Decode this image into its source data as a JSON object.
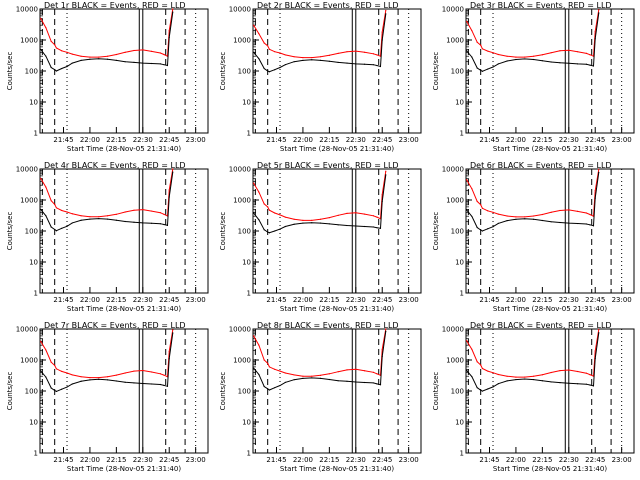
{
  "chart_data": [
    {
      "type": "line",
      "title": "Det 1r BLACK = Events, RED = LLD",
      "xlabel": "Start Time (28-Nov-05 21:31:40)",
      "ylabel": "Counts/sec",
      "yscale": "log",
      "ylim": [
        1,
        10000
      ],
      "x_ticks": [
        "21:45",
        "22:00",
        "22:15",
        "22:30",
        "22:45",
        "23:00"
      ],
      "y_ticks": [
        "1",
        "10",
        "100",
        "1000",
        "10000"
      ],
      "x": [
        "21:32",
        "21:35",
        "21:38",
        "21:40",
        "21:41",
        "21:44",
        "21:47",
        "21:50",
        "21:55",
        "22:00",
        "22:05",
        "22:10",
        "22:15",
        "22:20",
        "22:25",
        "22:30",
        "22:35",
        "22:40",
        "22:42",
        "22:44",
        "22:45",
        "22:47"
      ],
      "series": [
        {
          "name": "RED",
          "color": "#ff0000",
          "values": [
            5000,
            2500,
            900,
            700,
            550,
            450,
            400,
            350,
            300,
            280,
            280,
            300,
            340,
            400,
            460,
            480,
            430,
            380,
            340,
            300,
            2000,
            10000
          ]
        },
        {
          "name": "BLACK",
          "color": "#000000",
          "values": [
            500,
            300,
            130,
            110,
            100,
            120,
            140,
            180,
            220,
            240,
            250,
            240,
            220,
            200,
            190,
            180,
            175,
            170,
            160,
            150,
            1200,
            8000
          ]
        }
      ]
    },
    {
      "type": "line",
      "title": "Det 2r BLACK = Events, RED = LLD",
      "xlabel": "Start Time (28-Nov-05 21:31:40)",
      "ylabel": "Counts/sec",
      "yscale": "log",
      "ylim": [
        1,
        10000
      ],
      "x_ticks": [
        "21:45",
        "22:00",
        "22:15",
        "22:30",
        "22:45",
        "23:00"
      ],
      "y_ticks": [
        "1",
        "10",
        "100",
        "1000",
        "10000"
      ],
      "x": [
        "21:32",
        "21:35",
        "21:38",
        "21:40",
        "21:41",
        "21:44",
        "21:47",
        "21:50",
        "21:55",
        "22:00",
        "22:05",
        "22:10",
        "22:15",
        "22:20",
        "22:25",
        "22:30",
        "22:35",
        "22:40",
        "22:42",
        "22:44",
        "22:45",
        "22:47"
      ],
      "series": [
        {
          "name": "RED",
          "color": "#ff0000",
          "values": [
            3000,
            1600,
            800,
            650,
            500,
            420,
            380,
            330,
            290,
            270,
            270,
            290,
            320,
            370,
            420,
            440,
            400,
            360,
            330,
            300,
            1800,
            9000
          ]
        },
        {
          "name": "BLACK",
          "color": "#000000",
          "values": [
            400,
            250,
            120,
            100,
            95,
            110,
            130,
            160,
            200,
            220,
            230,
            220,
            205,
            190,
            180,
            170,
            165,
            160,
            150,
            140,
            1000,
            7000
          ]
        }
      ]
    },
    {
      "type": "line",
      "title": "Det 3r BLACK = Events, RED = LLD",
      "xlabel": "Start Time (28-Nov-05 21:31:40)",
      "ylabel": "Counts/sec",
      "yscale": "log",
      "ylim": [
        1,
        10000
      ],
      "x_ticks": [
        "21:45",
        "22:00",
        "22:15",
        "22:30",
        "22:45",
        "23:00"
      ],
      "y_ticks": [
        "1",
        "10",
        "100",
        "1000",
        "10000"
      ],
      "x": [
        "21:32",
        "21:35",
        "21:38",
        "21:40",
        "21:41",
        "21:44",
        "21:47",
        "21:50",
        "21:55",
        "22:00",
        "22:05",
        "22:10",
        "22:15",
        "22:20",
        "22:25",
        "22:30",
        "22:35",
        "22:40",
        "22:42",
        "22:44",
        "22:45",
        "22:47"
      ],
      "series": [
        {
          "name": "RED",
          "color": "#ff0000",
          "values": [
            4000,
            2000,
            850,
            680,
            520,
            440,
            390,
            340,
            300,
            280,
            280,
            300,
            335,
            390,
            450,
            470,
            420,
            370,
            335,
            300,
            1900,
            9500
          ]
        },
        {
          "name": "BLACK",
          "color": "#000000",
          "values": [
            450,
            280,
            125,
            105,
            98,
            115,
            135,
            170,
            210,
            235,
            245,
            235,
            215,
            195,
            185,
            178,
            170,
            165,
            155,
            145,
            1100,
            7500
          ]
        }
      ]
    },
    {
      "type": "line",
      "title": "Det 4r BLACK = Events, RED = LLD",
      "xlabel": "Start Time (28-Nov-05 21:31:40)",
      "ylabel": "Counts/sec",
      "yscale": "log",
      "ylim": [
        1,
        10000
      ],
      "x_ticks": [
        "21:45",
        "22:00",
        "22:15",
        "22:30",
        "22:45",
        "23:00"
      ],
      "y_ticks": [
        "1",
        "10",
        "100",
        "1000",
        "10000"
      ],
      "x": [
        "21:32",
        "21:35",
        "21:38",
        "21:40",
        "21:41",
        "21:44",
        "21:47",
        "21:50",
        "21:55",
        "22:00",
        "22:05",
        "22:10",
        "22:15",
        "22:20",
        "22:25",
        "22:30",
        "22:35",
        "22:40",
        "22:42",
        "22:44",
        "22:45",
        "22:47"
      ],
      "series": [
        {
          "name": "RED",
          "color": "#ff0000",
          "values": [
            5000,
            2600,
            950,
            720,
            560,
            460,
            410,
            360,
            310,
            290,
            290,
            310,
            345,
            410,
            470,
            490,
            440,
            390,
            345,
            305,
            2100,
            10000
          ]
        },
        {
          "name": "BLACK",
          "color": "#000000",
          "values": [
            500,
            310,
            135,
            112,
            102,
            122,
            142,
            182,
            222,
            242,
            252,
            242,
            222,
            202,
            192,
            182,
            177,
            172,
            162,
            152,
            1250,
            8000
          ]
        }
      ]
    },
    {
      "type": "line",
      "title": "Det 5r BLACK = Events, RED = LLD",
      "xlabel": "Start Time (28-Nov-05 21:31:40)",
      "ylabel": "Counts/sec",
      "yscale": "log",
      "ylim": [
        1,
        10000
      ],
      "x_ticks": [
        "21:45",
        "22:00",
        "22:15",
        "22:30",
        "22:45",
        "23:00"
      ],
      "y_ticks": [
        "1",
        "10",
        "100",
        "1000",
        "10000"
      ],
      "x": [
        "21:32",
        "21:35",
        "21:38",
        "21:40",
        "21:41",
        "21:44",
        "21:47",
        "21:50",
        "21:55",
        "22:00",
        "22:05",
        "22:10",
        "22:15",
        "22:20",
        "22:25",
        "22:30",
        "22:35",
        "22:40",
        "22:42",
        "22:44",
        "22:45",
        "22:47"
      ],
      "series": [
        {
          "name": "RED",
          "color": "#ff0000",
          "values": [
            3500,
            1800,
            750,
            600,
            470,
            380,
            330,
            280,
            240,
            220,
            220,
            240,
            270,
            320,
            370,
            390,
            350,
            310,
            280,
            250,
            1500,
            8500
          ]
        },
        {
          "name": "BLACK",
          "color": "#000000",
          "values": [
            380,
            230,
            110,
            92,
            88,
            100,
            115,
            140,
            165,
            180,
            185,
            180,
            170,
            158,
            150,
            145,
            140,
            135,
            128,
            122,
            900,
            6500
          ]
        }
      ]
    },
    {
      "type": "line",
      "title": "Det 6r BLACK = Events, RED = LLD",
      "xlabel": "Start Time (28-Nov-05 21:31:40)",
      "ylabel": "Counts/sec",
      "yscale": "log",
      "ylim": [
        1,
        10000
      ],
      "x_ticks": [
        "21:45",
        "22:00",
        "22:15",
        "22:30",
        "22:45",
        "23:00"
      ],
      "y_ticks": [
        "1",
        "10",
        "100",
        "1000",
        "10000"
      ],
      "x": [
        "21:32",
        "21:35",
        "21:38",
        "21:40",
        "21:41",
        "21:44",
        "21:47",
        "21:50",
        "21:55",
        "22:00",
        "22:05",
        "22:10",
        "22:15",
        "22:20",
        "22:25",
        "22:30",
        "22:35",
        "22:40",
        "22:42",
        "22:44",
        "22:45",
        "22:47"
      ],
      "series": [
        {
          "name": "RED",
          "color": "#ff0000",
          "values": [
            4500,
            2300,
            900,
            700,
            540,
            450,
            400,
            350,
            305,
            285,
            285,
            305,
            340,
            400,
            460,
            480,
            430,
            380,
            340,
            300,
            2000,
            9800
          ]
        },
        {
          "name": "BLACK",
          "color": "#000000",
          "values": [
            480,
            295,
            130,
            108,
            100,
            118,
            138,
            176,
            216,
            238,
            248,
            238,
            218,
            198,
            188,
            180,
            174,
            168,
            158,
            148,
            1150,
            7800
          ]
        }
      ]
    },
    {
      "type": "line",
      "title": "Det 7r BLACK = Events, RED = LLD",
      "xlabel": "Start Time (28-Nov-05 21:31:40)",
      "ylabel": "Counts/sec",
      "yscale": "log",
      "ylim": [
        1,
        10000
      ],
      "x_ticks": [
        "21:45",
        "22:00",
        "22:15",
        "22:30",
        "22:45",
        "23:00"
      ],
      "y_ticks": [
        "1",
        "10",
        "100",
        "1000",
        "10000"
      ],
      "x": [
        "21:32",
        "21:35",
        "21:38",
        "21:40",
        "21:41",
        "21:44",
        "21:47",
        "21:50",
        "21:55",
        "22:00",
        "22:05",
        "22:10",
        "22:15",
        "22:20",
        "22:25",
        "22:30",
        "22:35",
        "22:40",
        "22:42",
        "22:44",
        "22:45",
        "22:47"
      ],
      "series": [
        {
          "name": "RED",
          "color": "#ff0000",
          "values": [
            4000,
            2100,
            850,
            670,
            520,
            430,
            380,
            330,
            290,
            270,
            270,
            290,
            325,
            380,
            440,
            460,
            410,
            360,
            325,
            290,
            1900,
            9500
          ]
        },
        {
          "name": "BLACK",
          "color": "#000000",
          "values": [
            450,
            280,
            125,
            104,
            97,
            114,
            134,
            168,
            206,
            228,
            238,
            228,
            210,
            192,
            182,
            174,
            168,
            162,
            152,
            142,
            1100,
            7500
          ]
        }
      ]
    },
    {
      "type": "line",
      "title": "Det 8r BLACK = Events, RED = LLD",
      "xlabel": "Start Time (28-Nov-05 21:31:40)",
      "ylabel": "Counts/sec",
      "yscale": "log",
      "ylim": [
        1,
        10000
      ],
      "x_ticks": [
        "21:45",
        "22:00",
        "22:15",
        "22:30",
        "22:45",
        "23:00"
      ],
      "y_ticks": [
        "1",
        "10",
        "100",
        "1000",
        "10000"
      ],
      "x": [
        "21:32",
        "21:35",
        "21:38",
        "21:40",
        "21:41",
        "21:44",
        "21:47",
        "21:50",
        "21:55",
        "22:00",
        "22:05",
        "22:10",
        "22:15",
        "22:20",
        "22:25",
        "22:30",
        "22:35",
        "22:40",
        "22:42",
        "22:44",
        "22:45",
        "22:47"
      ],
      "series": [
        {
          "name": "RED",
          "color": "#ff0000",
          "values": [
            6000,
            3000,
            1000,
            780,
            600,
            500,
            440,
            380,
            330,
            300,
            300,
            320,
            360,
            420,
            480,
            500,
            450,
            400,
            360,
            320,
            2200,
            10000
          ]
        },
        {
          "name": "BLACK",
          "color": "#000000",
          "values": [
            550,
            340,
            140,
            118,
            108,
            128,
            150,
            190,
            232,
            255,
            265,
            255,
            235,
            215,
            205,
            195,
            188,
            182,
            170,
            160,
            1300,
            8500
          ]
        }
      ]
    },
    {
      "type": "line",
      "title": "Det 9r BLACK = Events, RED = LLD",
      "xlabel": "Start Time (28-Nov-05 21:31:40)",
      "ylabel": "Counts/sec",
      "yscale": "log",
      "ylim": [
        1,
        10000
      ],
      "x_ticks": [
        "21:45",
        "22:00",
        "22:15",
        "22:30",
        "22:45",
        "23:00"
      ],
      "y_ticks": [
        "1",
        "10",
        "100",
        "1000",
        "10000"
      ],
      "x": [
        "21:32",
        "21:35",
        "21:38",
        "21:40",
        "21:41",
        "21:44",
        "21:47",
        "21:50",
        "21:55",
        "22:00",
        "22:05",
        "22:10",
        "22:15",
        "22:20",
        "22:25",
        "22:30",
        "22:35",
        "22:40",
        "22:42",
        "22:44",
        "22:45",
        "22:47"
      ],
      "series": [
        {
          "name": "RED",
          "color": "#ff0000",
          "values": [
            4200,
            2200,
            880,
            690,
            530,
            440,
            390,
            340,
            300,
            280,
            280,
            300,
            335,
            395,
            455,
            475,
            425,
            375,
            338,
            302,
            1950,
            9700
          ]
        },
        {
          "name": "BLACK",
          "color": "#000000",
          "values": [
            460,
            290,
            128,
            106,
            99,
            116,
            136,
            172,
            212,
            234,
            244,
            234,
            214,
            196,
            186,
            178,
            172,
            166,
            156,
            146,
            1120,
            7600
          ]
        }
      ]
    }
  ]
}
